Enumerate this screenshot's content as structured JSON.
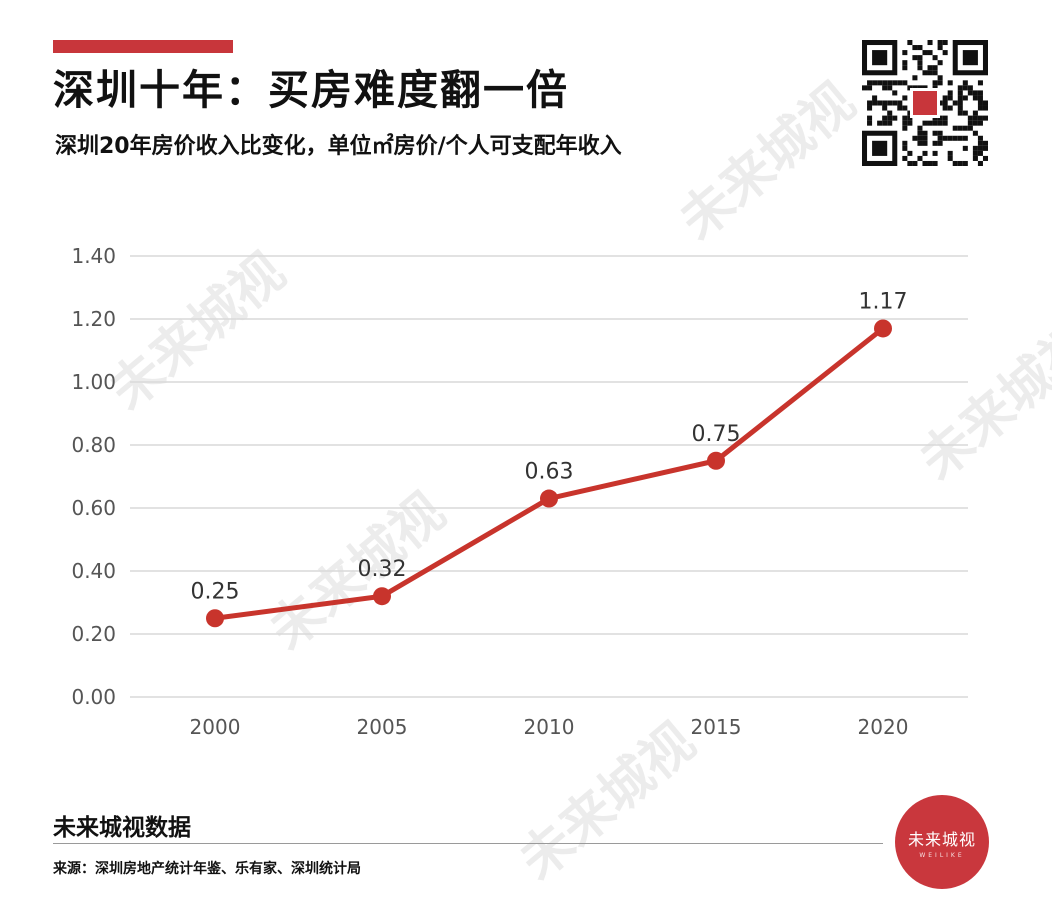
{
  "header": {
    "title": "深圳十年：买房难度翻一倍",
    "subtitle": "深圳20年房价收入比变化，单位㎡房价/个人可支配年收入"
  },
  "footer": {
    "brand": "未来城视数据",
    "source": "来源：深圳房地产统计年鉴、乐有家、深圳统计局"
  },
  "logo": {
    "text": "未来城视",
    "sub": "WEILIKE"
  },
  "watermark": {
    "text": "未来城视"
  },
  "colors": {
    "accent": "#c8363b",
    "line": "#c8342c",
    "grid": "#d9d9d9",
    "axis_text": "#555555",
    "logo_bg": "#c9373d"
  },
  "chart_data": {
    "type": "line",
    "categories": [
      "2000",
      "2005",
      "2010",
      "2015",
      "2020"
    ],
    "series": [
      {
        "values": [
          0.25,
          0.32,
          0.63,
          0.75,
          1.17
        ]
      }
    ],
    "data_labels": [
      "0.25",
      "0.32",
      "0.63",
      "0.75",
      "1.17"
    ],
    "yticks": [
      "0.00",
      "0.20",
      "0.40",
      "0.60",
      "0.80",
      "1.00",
      "1.20",
      "1.40"
    ],
    "ylim": [
      0,
      1.4
    ],
    "grid": true,
    "legend": "none"
  }
}
